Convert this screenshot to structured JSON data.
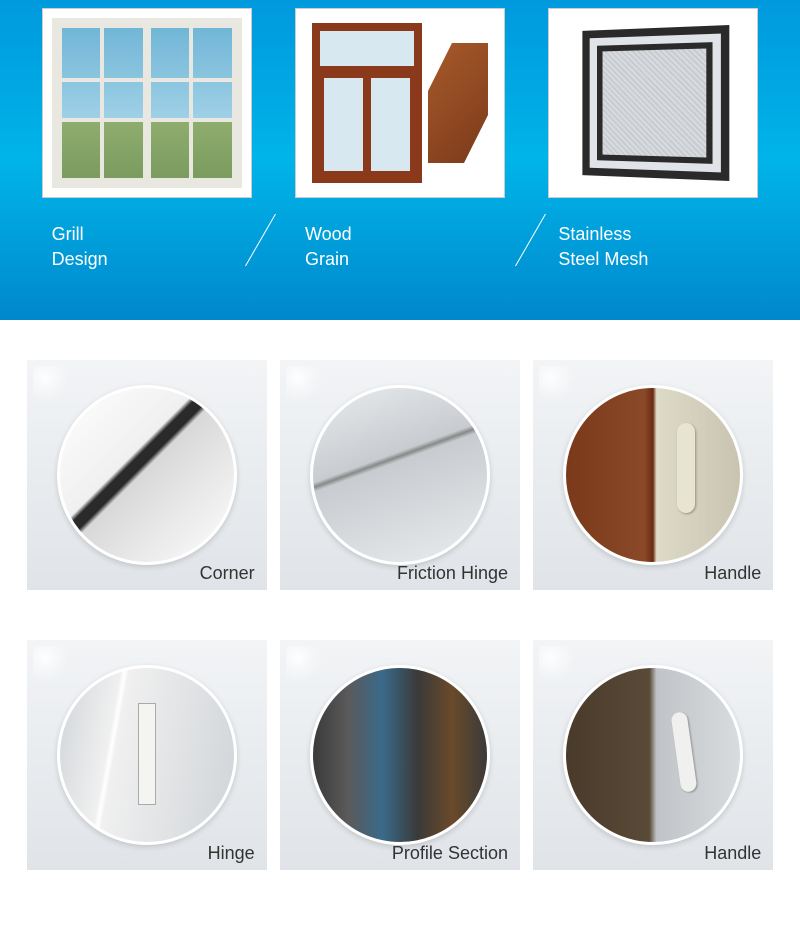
{
  "top": {
    "background_gradient": [
      "#0099dd",
      "#00b4e8",
      "#0088cc"
    ],
    "label_color": "#ffffff",
    "label_fontsize": 18,
    "items": [
      {
        "label_line1": "Grill",
        "label_line2": "Design",
        "frame_color": "#e8e8e0",
        "accent": "#6fb5d6"
      },
      {
        "label_line1": "Wood",
        "label_line2": "Grain",
        "frame_color": "#8a3a1a",
        "accent": "#d8e8f0"
      },
      {
        "label_line1": "Stainless",
        "label_line2": "Steel Mesh",
        "frame_color": "#2a2a2a",
        "accent": "#e0e4e8"
      }
    ]
  },
  "grid": {
    "cell_bg_gradient": [
      "#f2f4f6",
      "#e0e4e8"
    ],
    "circle_border": "#ffffff",
    "label_color": "#333333",
    "label_fontsize": 18,
    "rows": [
      [
        {
          "label": "Corner",
          "dominant_colors": [
            "#ffffff",
            "#2a2a2a",
            "#d8d8d8"
          ]
        },
        {
          "label": "Friction Hinge",
          "dominant_colors": [
            "#e8ecee",
            "#c8ccd0",
            "#888888"
          ]
        },
        {
          "label": "Handle",
          "dominant_colors": [
            "#7a3a1a",
            "#dedac8",
            "#e8e4d4"
          ]
        }
      ],
      [
        {
          "label": "Hinge",
          "dominant_colors": [
            "#d0d4d8",
            "#f0f0f0",
            "#f4f4f0"
          ]
        },
        {
          "label": "Profile Section",
          "dominant_colors": [
            "#3a3a3a",
            "#3a6a8a",
            "#6a4a2a"
          ]
        },
        {
          "label": "Handle",
          "dominant_colors": [
            "#4a3a2a",
            "#d8dcde",
            "#f0f0ee"
          ]
        }
      ]
    ]
  }
}
